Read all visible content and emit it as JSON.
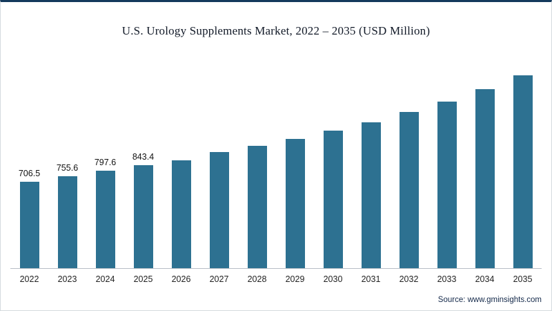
{
  "chart": {
    "source": "Source: www.gminsights.com"
  },
  "colors": {
    "bar": "#2d7191",
    "top_border": "#14395c",
    "axis_line": "#b7bec6",
    "title_text": "#101826"
  },
  "chart_data": {
    "type": "bar",
    "title": "U.S. Urology Supplements Market, 2022 – 2035 (USD Million)",
    "categories": [
      "2022",
      "2023",
      "2024",
      "2025",
      "2026",
      "2027",
      "2028",
      "2029",
      "2030",
      "2031",
      "2032",
      "2033",
      "2034",
      "2035"
    ],
    "values": [
      706.5,
      755.6,
      797.6,
      843.4,
      885,
      950,
      1003,
      1058,
      1126,
      1198,
      1282,
      1366,
      1467,
      1580
    ],
    "data_labels": [
      "706.5",
      "755.6",
      "797.6",
      "843.4",
      "",
      "",
      "",
      "",
      "",
      "",
      "",
      "",
      "",
      ""
    ],
    "xlabel": "",
    "ylabel": "",
    "ylim": [
      0,
      1700
    ],
    "grid": false,
    "legend": "none",
    "bar_color": "#2d7191"
  }
}
